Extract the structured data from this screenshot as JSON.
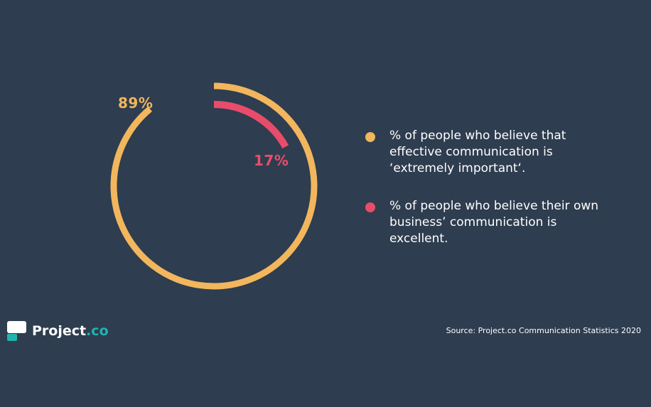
{
  "chart_data": {
    "type": "pie",
    "chart_style": "concentric-ring-arcs",
    "series": [
      {
        "name": "% of people who believe that effective communication is ‘extremely important‘.",
        "value": 89,
        "label": "89%",
        "color": "#f2b65d"
      },
      {
        "name": "% of people who believe their own business’ communication is excellent.",
        "value": 17,
        "label": "17%",
        "color": "#e94c6b"
      }
    ],
    "legend_position": "right"
  },
  "brand": {
    "name_part1": "Project",
    "name_part2": ".co"
  },
  "source": "Source: Project.co Communication Statistics 2020",
  "colors": {
    "background": "#2e3d4f",
    "accent_teal": "#1fb5ad"
  }
}
